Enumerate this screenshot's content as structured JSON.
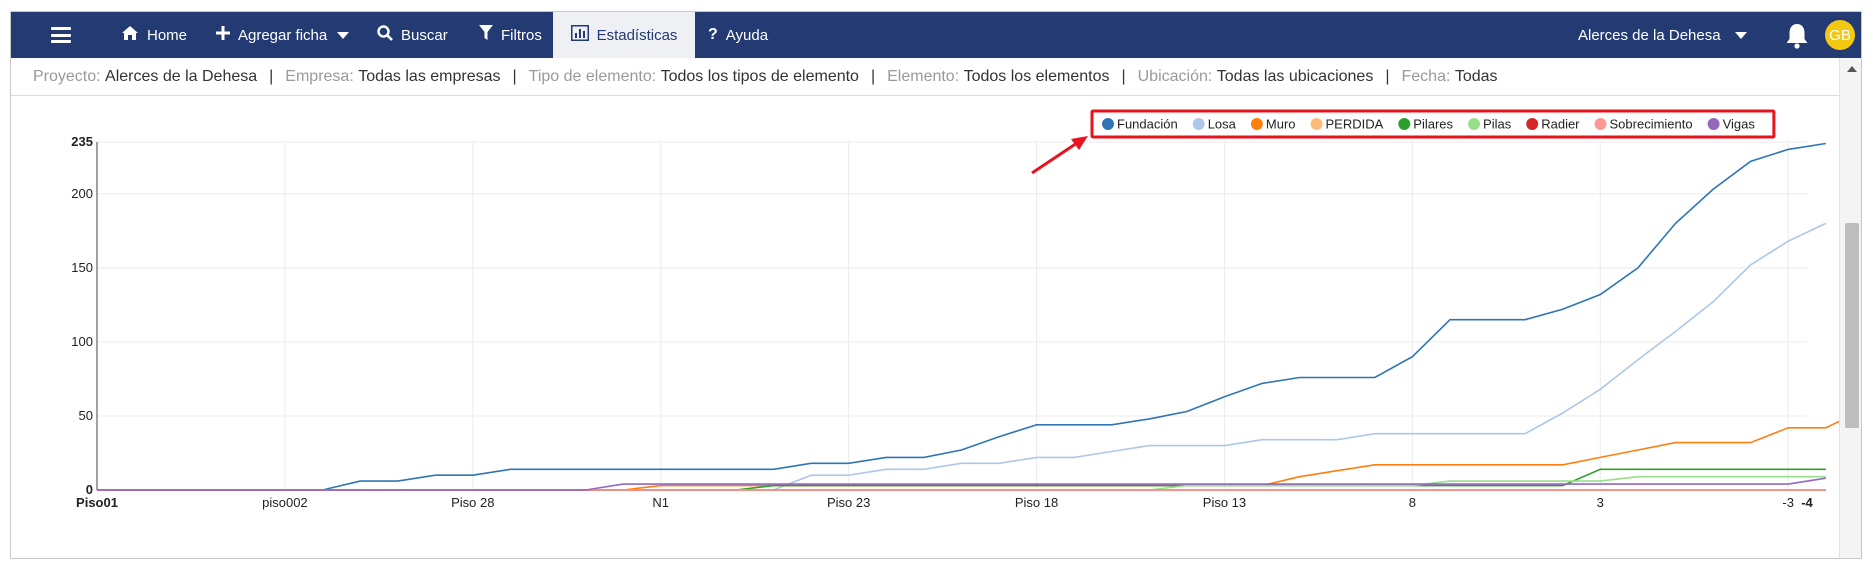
{
  "nav": {
    "home": "Home",
    "agregar": "Agregar ficha",
    "buscar": "Buscar",
    "filtros": "Filtros",
    "estadisticas": "Estadísticas",
    "ayuda": "Ayuda",
    "project_selector": "Alerces de la Dehesa",
    "avatar_initials": "GB"
  },
  "filters": {
    "proyecto_label": "Proyecto:",
    "proyecto_value": "Alerces de la Dehesa",
    "empresa_label": "Empresa:",
    "empresa_value": "Todas las empresas",
    "tipo_label": "Tipo de elemento:",
    "tipo_value": "Todos los tipos de elemento",
    "elemento_label": "Elemento:",
    "elemento_value": "Todos los elementos",
    "ubicacion_label": "Ubicación:",
    "ubicacion_value": "Todas las ubicaciones",
    "fecha_label": "Fecha:",
    "fecha_value": "Todas",
    "separator": "|"
  },
  "colors": {
    "navbar": "#243a73",
    "avatar": "#f2c811",
    "highlight": "#e8141d"
  },
  "chart_data": {
    "type": "line",
    "title": "",
    "xlabel": "",
    "ylabel": "",
    "ylim": [
      0,
      235
    ],
    "yticks": [
      0,
      50,
      100,
      150,
      200,
      235
    ],
    "grid": true,
    "legend_position": "top-right",
    "x": [
      "Piso01",
      "",
      "",
      "",
      "",
      "",
      "",
      "",
      "",
      "",
      "piso002",
      "",
      "",
      "",
      "",
      "",
      "",
      "",
      "",
      "",
      "Piso 28",
      "",
      "",
      "",
      "",
      "",
      "",
      "",
      "",
      "",
      "N1",
      "",
      "",
      "",
      "",
      "",
      "",
      "",
      "",
      "",
      "Piso 23",
      "",
      "",
      "",
      "",
      "",
      "",
      "",
      "",
      "",
      "Piso 18",
      "",
      "",
      "",
      "",
      "",
      "",
      "",
      "",
      "",
      "Piso 13",
      "",
      "",
      "",
      "",
      "",
      "",
      "",
      "",
      "",
      "8",
      "",
      "",
      "",
      "",
      "",
      "",
      "",
      "",
      "",
      "3",
      "",
      "",
      "",
      "",
      "",
      "",
      "",
      "",
      "",
      "-3",
      "-4"
    ],
    "x_labels_shown": [
      "Piso01",
      "piso002",
      "Piso 28",
      "N1",
      "Piso 23",
      "Piso 18",
      "Piso 13",
      "8",
      "3",
      "-3",
      "-4"
    ],
    "series": [
      {
        "name": "Fundación",
        "color": "#2e75b6",
        "points": [
          [
            0,
            0
          ],
          [
            12,
            0
          ],
          [
            14,
            6
          ],
          [
            16,
            6
          ],
          [
            18,
            10
          ],
          [
            20,
            10
          ],
          [
            22,
            14
          ],
          [
            24,
            14
          ],
          [
            36,
            14
          ],
          [
            38,
            18
          ],
          [
            40,
            18
          ],
          [
            42,
            22
          ],
          [
            44,
            22
          ],
          [
            46,
            27
          ],
          [
            48,
            36
          ],
          [
            50,
            44
          ],
          [
            54,
            44
          ],
          [
            56,
            48
          ],
          [
            58,
            53
          ],
          [
            60,
            63
          ],
          [
            62,
            72
          ],
          [
            64,
            76
          ],
          [
            68,
            76
          ],
          [
            70,
            90
          ],
          [
            72,
            115
          ],
          [
            76,
            115
          ],
          [
            78,
            122
          ],
          [
            80,
            132
          ],
          [
            82,
            150
          ],
          [
            84,
            180
          ],
          [
            86,
            203
          ],
          [
            88,
            222
          ],
          [
            90,
            230
          ],
          [
            92,
            234
          ]
        ]
      },
      {
        "name": "Losa",
        "color": "#aec7e8",
        "points": [
          [
            0,
            0
          ],
          [
            36,
            0
          ],
          [
            38,
            10
          ],
          [
            40,
            10
          ],
          [
            42,
            14
          ],
          [
            44,
            14
          ],
          [
            46,
            18
          ],
          [
            48,
            18
          ],
          [
            50,
            22
          ],
          [
            52,
            22
          ],
          [
            54,
            26
          ],
          [
            56,
            30
          ],
          [
            60,
            30
          ],
          [
            62,
            34
          ],
          [
            66,
            34
          ],
          [
            68,
            38
          ],
          [
            76,
            38
          ],
          [
            78,
            52
          ],
          [
            80,
            68
          ],
          [
            82,
            88
          ],
          [
            84,
            107
          ],
          [
            86,
            127
          ],
          [
            88,
            152
          ],
          [
            90,
            168
          ],
          [
            92,
            180
          ]
        ]
      },
      {
        "name": "Muro",
        "color": "#ff7f0e",
        "points": [
          [
            0,
            0
          ],
          [
            28,
            0
          ],
          [
            30,
            3
          ],
          [
            62,
            3
          ],
          [
            64,
            9
          ],
          [
            66,
            13
          ],
          [
            68,
            17
          ],
          [
            78,
            17
          ],
          [
            80,
            22
          ],
          [
            82,
            27
          ],
          [
            84,
            32
          ],
          [
            86,
            32
          ],
          [
            88,
            32
          ],
          [
            90,
            42
          ],
          [
            92,
            42
          ],
          [
            94,
            54
          ]
        ]
      },
      {
        "name": "PERDIDA",
        "color": "#ffbb78",
        "points": [
          [
            0,
            0
          ],
          [
            92,
            0
          ]
        ]
      },
      {
        "name": "Pilares",
        "color": "#2ca02c",
        "points": [
          [
            0,
            0
          ],
          [
            34,
            0
          ],
          [
            36,
            3
          ],
          [
            78,
            3
          ],
          [
            80,
            14
          ],
          [
            92,
            14
          ]
        ]
      },
      {
        "name": "Pilas",
        "color": "#98df8a",
        "points": [
          [
            0,
            0
          ],
          [
            56,
            0
          ],
          [
            58,
            3
          ],
          [
            70,
            3
          ],
          [
            72,
            6
          ],
          [
            80,
            6
          ],
          [
            82,
            9
          ],
          [
            92,
            9
          ]
        ]
      },
      {
        "name": "Radier",
        "color": "#d62728",
        "points": [
          [
            0,
            0
          ],
          [
            92,
            0
          ]
        ]
      },
      {
        "name": "Sobrecimiento",
        "color": "#ff9896",
        "points": [
          [
            0,
            0
          ],
          [
            92,
            0
          ]
        ]
      },
      {
        "name": "Vigas",
        "color": "#9467bd",
        "points": [
          [
            0,
            0
          ],
          [
            26,
            0
          ],
          [
            28,
            4
          ],
          [
            90,
            4
          ],
          [
            92,
            8
          ]
        ]
      }
    ]
  }
}
